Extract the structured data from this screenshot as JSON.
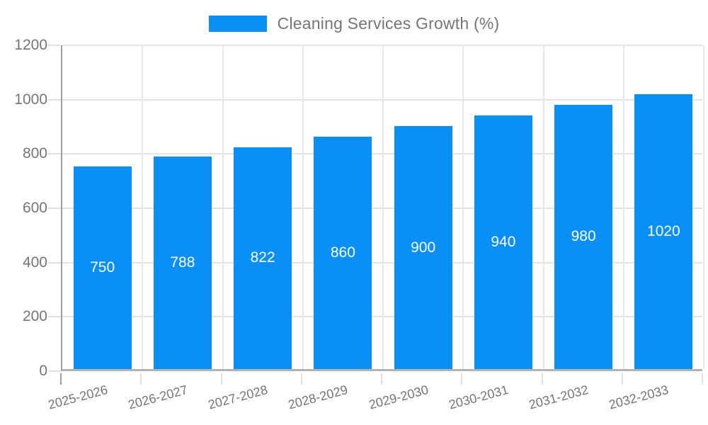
{
  "chart_data": {
    "type": "bar",
    "title": "Cleaning Services Growth (%)",
    "categories": [
      "2025-2026",
      "2026-2027",
      "2027-2028",
      "2028-2029",
      "2029-2030",
      "2030-2031",
      "2031-2032",
      "2032-2033"
    ],
    "values": [
      750,
      788,
      822,
      860,
      900,
      940,
      980,
      1020
    ],
    "value_labels": [
      "750",
      "788",
      "822",
      "860",
      "900",
      "940",
      "980",
      "1020"
    ],
    "xlabel": "",
    "ylabel": "",
    "ylim": [
      0,
      1200
    ],
    "yticks": [
      0,
      200,
      400,
      600,
      800,
      1000,
      1200
    ],
    "grid": true,
    "legend_position": "top-center",
    "x_label_rotation_deg": -15,
    "colors": {
      "bar": "#0a90f5",
      "bar_value_text": "#ffffff",
      "axis_text": "#757575",
      "gridline": "#e3e3e3",
      "axis_line": "#9e9e9e",
      "background": "#ffffff"
    }
  }
}
